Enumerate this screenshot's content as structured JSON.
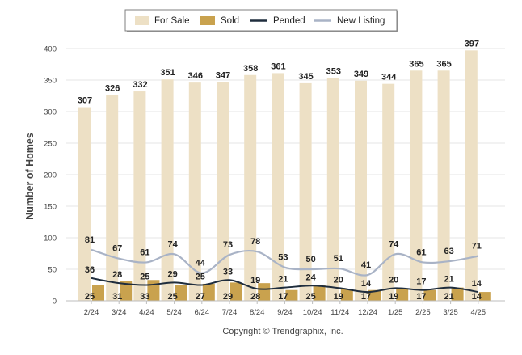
{
  "chart_data": {
    "type": "bar",
    "categories": [
      "2/24",
      "3/24",
      "4/24",
      "5/24",
      "6/24",
      "7/24",
      "8/24",
      "9/24",
      "10/24",
      "11/24",
      "12/24",
      "1/25",
      "2/25",
      "3/25",
      "4/25"
    ],
    "series": [
      {
        "name": "For Sale",
        "type": "bar",
        "color": "#ede0c5",
        "values": [
          307,
          326,
          332,
          351,
          346,
          347,
          358,
          361,
          345,
          353,
          349,
          344,
          365,
          365,
          397
        ]
      },
      {
        "name": "Sold",
        "type": "bar",
        "color": "#c9a24e",
        "values": [
          25,
          31,
          33,
          25,
          27,
          29,
          28,
          17,
          25,
          19,
          17,
          19,
          17,
          21,
          14
        ]
      },
      {
        "name": "Pended",
        "type": "line",
        "color": "#1f2d3d",
        "values": [
          36,
          28,
          25,
          29,
          25,
          33,
          19,
          21,
          24,
          20,
          14,
          20,
          17,
          21,
          14
        ]
      },
      {
        "name": "New Listing",
        "type": "line",
        "color": "#a9b3c6",
        "values": [
          81,
          67,
          61,
          74,
          44,
          73,
          78,
          53,
          50,
          51,
          41,
          74,
          61,
          63,
          71
        ]
      }
    ],
    "ylabel": "Number of Homes",
    "xlabel": "",
    "ylim": [
      0,
      400
    ],
    "yticks": [
      0,
      50,
      100,
      150,
      200,
      250,
      300,
      350,
      400
    ],
    "grid": true,
    "legend_position": "top-center"
  },
  "legend": {
    "items": [
      "For Sale",
      "Sold",
      "Pended",
      "New Listing"
    ]
  },
  "footer": {
    "copyright": "Copyright © Trendgraphix, Inc."
  }
}
